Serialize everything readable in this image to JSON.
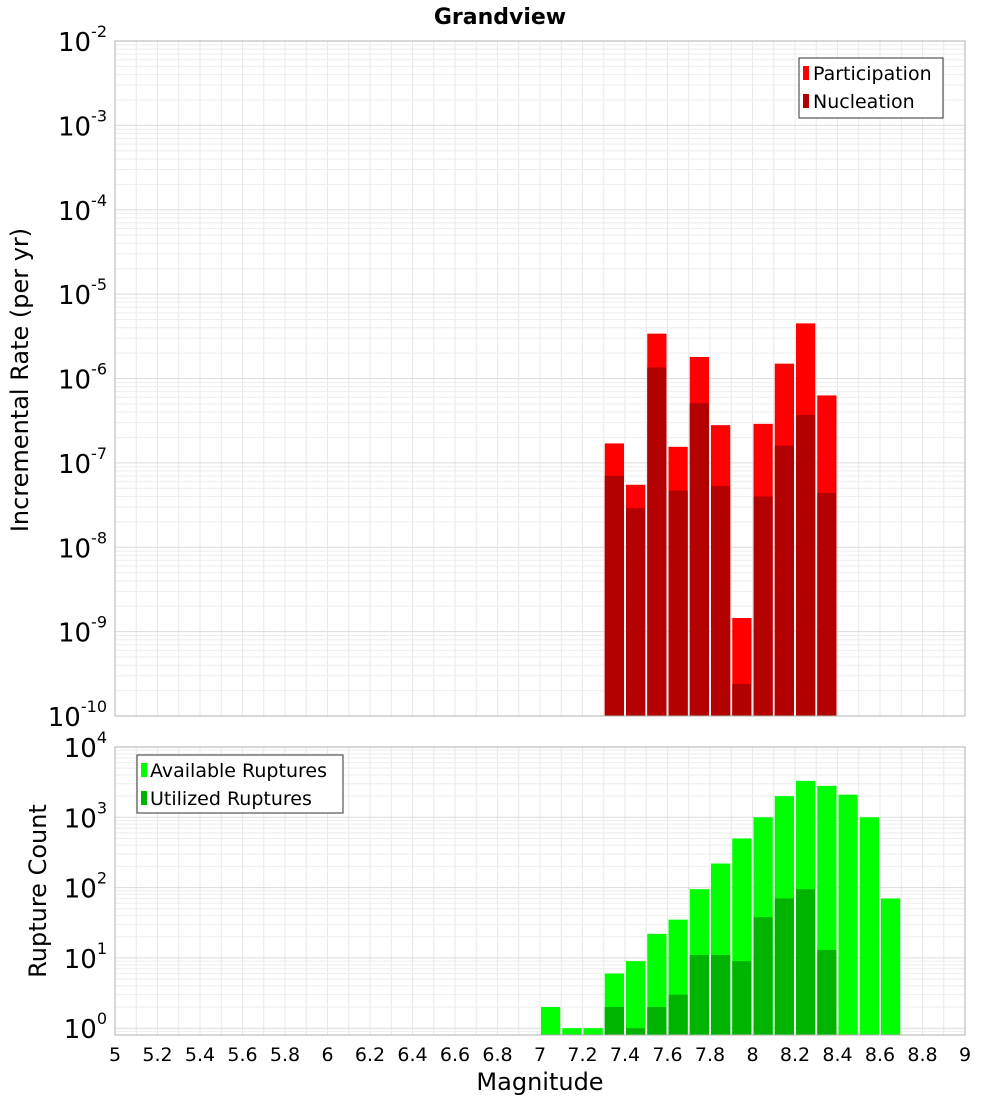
{
  "chart_data": [
    {
      "type": "bar",
      "title": "Grandview",
      "xlabel": "",
      "ylabel": "Incremental Rate (per yr)",
      "yscale": "log",
      "ylim": [
        1e-10,
        0.01
      ],
      "xlim": [
        5,
        9
      ],
      "grid": true,
      "legend_position": "top-right",
      "y_tick_exponents": [
        "-10",
        "-9",
        "-8",
        "-7",
        "-6",
        "-5",
        "-4",
        "-3",
        "-2"
      ],
      "x": [
        7.35,
        7.45,
        7.55,
        7.65,
        7.75,
        7.85,
        7.95,
        8.05,
        8.15,
        8.25,
        8.35
      ],
      "series": [
        {
          "name": "Participation",
          "color": "#ff0000",
          "values": [
            1.7e-07,
            5.5e-08,
            3.4e-06,
            1.55e-07,
            1.8e-06,
            2.8e-07,
            1.45e-09,
            2.9e-07,
            1.5e-06,
            4.5e-06,
            6.3e-07
          ]
        },
        {
          "name": "Nucleation",
          "color": "#b30000",
          "values": [
            7e-08,
            2.9e-08,
            1.35e-06,
            4.7e-08,
            5.1e-07,
            5.3e-08,
            2.4e-10,
            4e-08,
            1.6e-07,
            3.7e-07,
            4.4e-08
          ]
        }
      ]
    },
    {
      "type": "bar",
      "title": "",
      "xlabel": "Magnitude",
      "ylabel": "Rupture Count",
      "yscale": "log",
      "ylim": [
        0.8,
        10000
      ],
      "xlim": [
        5,
        9
      ],
      "grid": true,
      "legend_position": "top-left",
      "y_tick_exponents": [
        "0",
        "1",
        "2",
        "3",
        "4"
      ],
      "x_ticks": [
        "5",
        "5.2",
        "5.4",
        "5.6",
        "5.8",
        "6",
        "6.2",
        "6.4",
        "6.6",
        "6.8",
        "7",
        "7.2",
        "7.4",
        "7.6",
        "7.8",
        "8",
        "8.2",
        "8.4",
        "8.6",
        "8.8",
        "9"
      ],
      "x": [
        7.05,
        7.15,
        7.25,
        7.35,
        7.45,
        7.55,
        7.65,
        7.75,
        7.85,
        7.95,
        8.05,
        8.15,
        8.25,
        8.35,
        8.45,
        8.55,
        8.65
      ],
      "series": [
        {
          "name": "Available Ruptures",
          "color": "#00ff00",
          "values": [
            2,
            1,
            1,
            6,
            9,
            22,
            35,
            95,
            220,
            500,
            1000,
            2000,
            3300,
            2800,
            2100,
            1000,
            70
          ]
        },
        {
          "name": "Utilized Ruptures",
          "color": "#00b300",
          "values": [
            0,
            0,
            0,
            2,
            1,
            2,
            3,
            11,
            11,
            9,
            38,
            70,
            95,
            13,
            0,
            0,
            0
          ]
        }
      ]
    }
  ]
}
